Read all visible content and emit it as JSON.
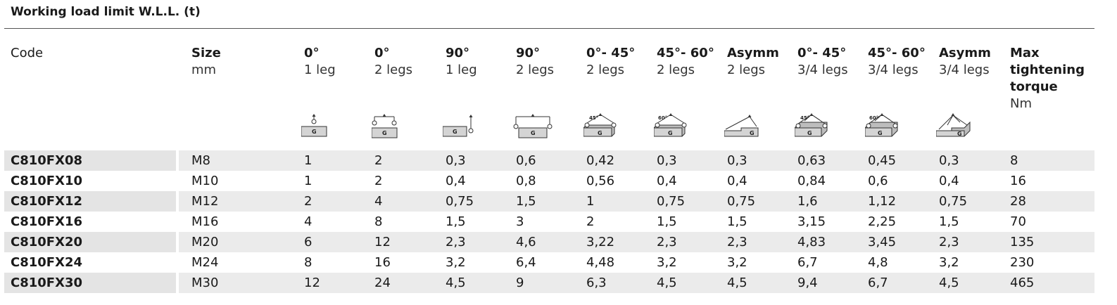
{
  "title": "Working load limit W.L.L. (t)",
  "columns": [
    {
      "h1": "Code",
      "h2": ""
    },
    {
      "h1": "Size",
      "h2": "mm"
    },
    {
      "h1": "0°",
      "h2": "1 leg"
    },
    {
      "h1": "0°",
      "h2": "2 legs"
    },
    {
      "h1": "90°",
      "h2": "1 leg"
    },
    {
      "h1": "90°",
      "h2": "2 legs"
    },
    {
      "h1": "0°- 45°",
      "h2": "2 legs"
    },
    {
      "h1": "45°- 60°",
      "h2": "2 legs"
    },
    {
      "h1": "Asymm",
      "h2": "2 legs"
    },
    {
      "h1": "0°- 45°",
      "h2": "3/4 legs"
    },
    {
      "h1": "45°- 60°",
      "h2": "3/4 legs"
    },
    {
      "h1": "Asymm",
      "h2": "3/4 legs"
    },
    {
      "h1": "Max tightening torque",
      "h2": "Nm"
    }
  ],
  "icons": {
    "g_label": "G",
    "angle_45": "45°",
    "angle_60": "60°",
    "names": [
      "lift-vertical-1-leg-icon",
      "lift-vertical-2-legs-icon",
      "lift-side-1-leg-icon",
      "lift-side-2-legs-icon",
      "lift-2-legs-45-icon",
      "lift-2-legs-60-icon",
      "lift-asymm-2-legs-icon",
      "lift-34-legs-45-icon",
      "lift-34-legs-60-icon",
      "lift-asymm-34-legs-icon"
    ]
  },
  "rows": [
    [
      "C810FX08",
      "M8",
      "1",
      "2",
      "0,3",
      "0,6",
      "0,42",
      "0,3",
      "0,3",
      "0,63",
      "0,45",
      "0,3",
      "8"
    ],
    [
      "C810FX10",
      "M10",
      "1",
      "2",
      "0,4",
      "0,8",
      "0,56",
      "0,4",
      "0,4",
      "0,84",
      "0,6",
      "0,4",
      "16"
    ],
    [
      "C810FX12",
      "M12",
      "2",
      "4",
      "0,75",
      "1,5",
      "1",
      "0,75",
      "0,75",
      "1,6",
      "1,12",
      "0,75",
      "28"
    ],
    [
      "C810FX16",
      "M16",
      "4",
      "8",
      "1,5",
      "3",
      "2",
      "1,5",
      "1,5",
      "3,15",
      "2,25",
      "1,5",
      "70"
    ],
    [
      "C810FX20",
      "M20",
      "6",
      "12",
      "2,3",
      "4,6",
      "3,22",
      "2,3",
      "2,3",
      "4,83",
      "3,45",
      "2,3",
      "135"
    ],
    [
      "C810FX24",
      "M24",
      "8",
      "16",
      "3,2",
      "6,4",
      "4,48",
      "3,2",
      "3,2",
      "6,7",
      "4,8",
      "3,2",
      "230"
    ],
    [
      "C810FX30",
      "M30",
      "12",
      "24",
      "4,5",
      "9",
      "6,3",
      "4,5",
      "4,5",
      "9,4",
      "6,7",
      "4,5",
      "465"
    ]
  ]
}
